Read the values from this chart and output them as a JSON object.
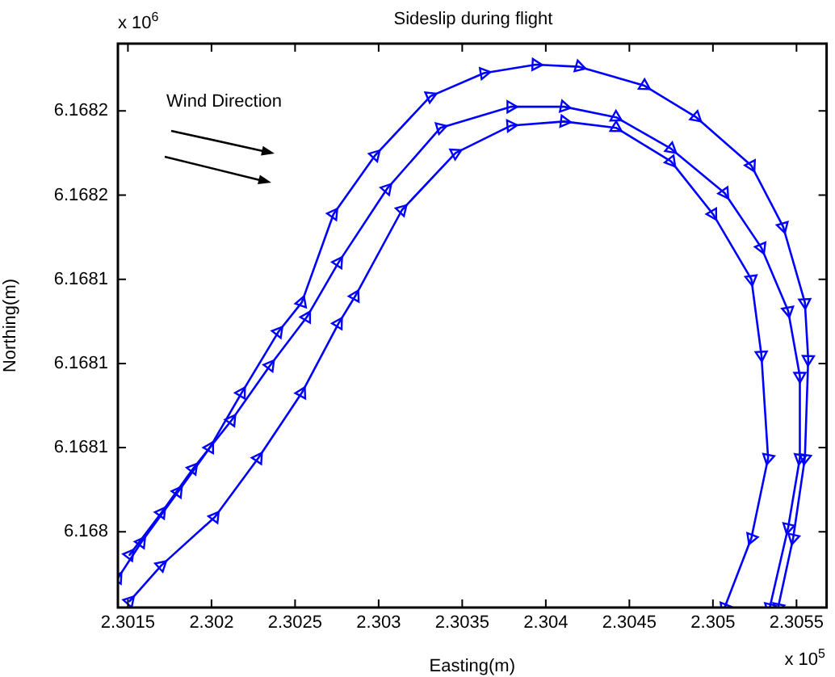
{
  "chart_data": {
    "type": "line",
    "title": "Sideslip during flight",
    "xlabel": "Easting(m)",
    "ylabel": "Northing(m)",
    "annotations": [
      "Wind Direction",
      "x 10$^{6}$",
      "x 10$^{5}$"
    ],
    "xlim": [
      2.30144,
      2.30568
    ],
    "ylim": [
      6.167984,
      6.168252
    ],
    "xticks": [
      2.3015,
      2.302,
      2.3025,
      2.303,
      2.3035,
      2.304,
      2.3045,
      2.305,
      2.3055
    ],
    "yticks": [
      {
        "value": 6.16802,
        "label": "6.168"
      },
      {
        "value": 6.16806,
        "label": "6.1681"
      },
      {
        "value": 6.1681,
        "label": "6.1681"
      },
      {
        "value": 6.16814,
        "label": "6.1681"
      },
      {
        "value": 6.16818,
        "label": "6.1682"
      },
      {
        "value": 6.16822,
        "label": "6.1682"
      }
    ],
    "grid": false,
    "legend": false,
    "marker": "triangle",
    "line_style": "solid",
    "series": [
      {
        "color": "#0000ff",
        "x": [
          2.30144,
          2.30158,
          2.3018,
          2.30199,
          2.30218,
          2.3024,
          2.30254,
          2.30273,
          2.30298,
          2.30331,
          2.30363,
          2.30394,
          2.3042,
          2.30459,
          2.3049,
          2.30523,
          2.30542,
          2.30555,
          2.30557,
          2.30555,
          2.30548,
          2.30539
        ],
        "values": [
          6.167998,
          6.168015,
          6.168039,
          6.16806,
          6.168086,
          6.168115,
          6.168129,
          6.168171,
          6.168199,
          6.168227,
          6.168238,
          6.168242,
          6.168241,
          6.168232,
          6.168217,
          6.168194,
          6.168165,
          6.168129,
          6.168102,
          6.168055,
          6.168017,
          6.167984
        ]
      },
      {
        "color": "#0000ff",
        "x": [
          2.30151,
          2.3017,
          2.30189,
          2.30212,
          2.30235,
          2.30257,
          2.30276,
          2.30305,
          2.30337,
          2.30379,
          2.30411,
          2.30442,
          2.30475,
          2.30507,
          2.30529,
          2.30545,
          2.30552,
          2.30552,
          2.30545,
          2.30534
        ],
        "values": [
          6.168009,
          6.168029,
          6.16805,
          6.168073,
          6.168099,
          6.168122,
          6.168148,
          6.168183,
          6.168212,
          6.168222,
          6.168222,
          6.168217,
          6.168202,
          6.168181,
          6.168155,
          6.168125,
          6.168094,
          6.168055,
          6.168022,
          6.167984
        ]
      },
      {
        "color": "#0000ff",
        "x": [
          2.30151,
          2.3017,
          2.30202,
          2.30228,
          2.30254,
          2.30276,
          2.30286,
          2.30314,
          2.30346,
          2.30379,
          2.30411,
          2.30442,
          2.30475,
          2.305,
          2.30523,
          2.30529,
          2.30533,
          2.30523,
          2.30507
        ],
        "values": [
          6.167987,
          6.168004,
          6.168027,
          6.168055,
          6.168086,
          6.168119,
          6.168132,
          6.168173,
          6.1682,
          6.168213,
          6.168215,
          6.168212,
          6.168196,
          6.168171,
          6.16814,
          6.168104,
          6.168055,
          6.168017,
          6.167984
        ]
      }
    ]
  }
}
